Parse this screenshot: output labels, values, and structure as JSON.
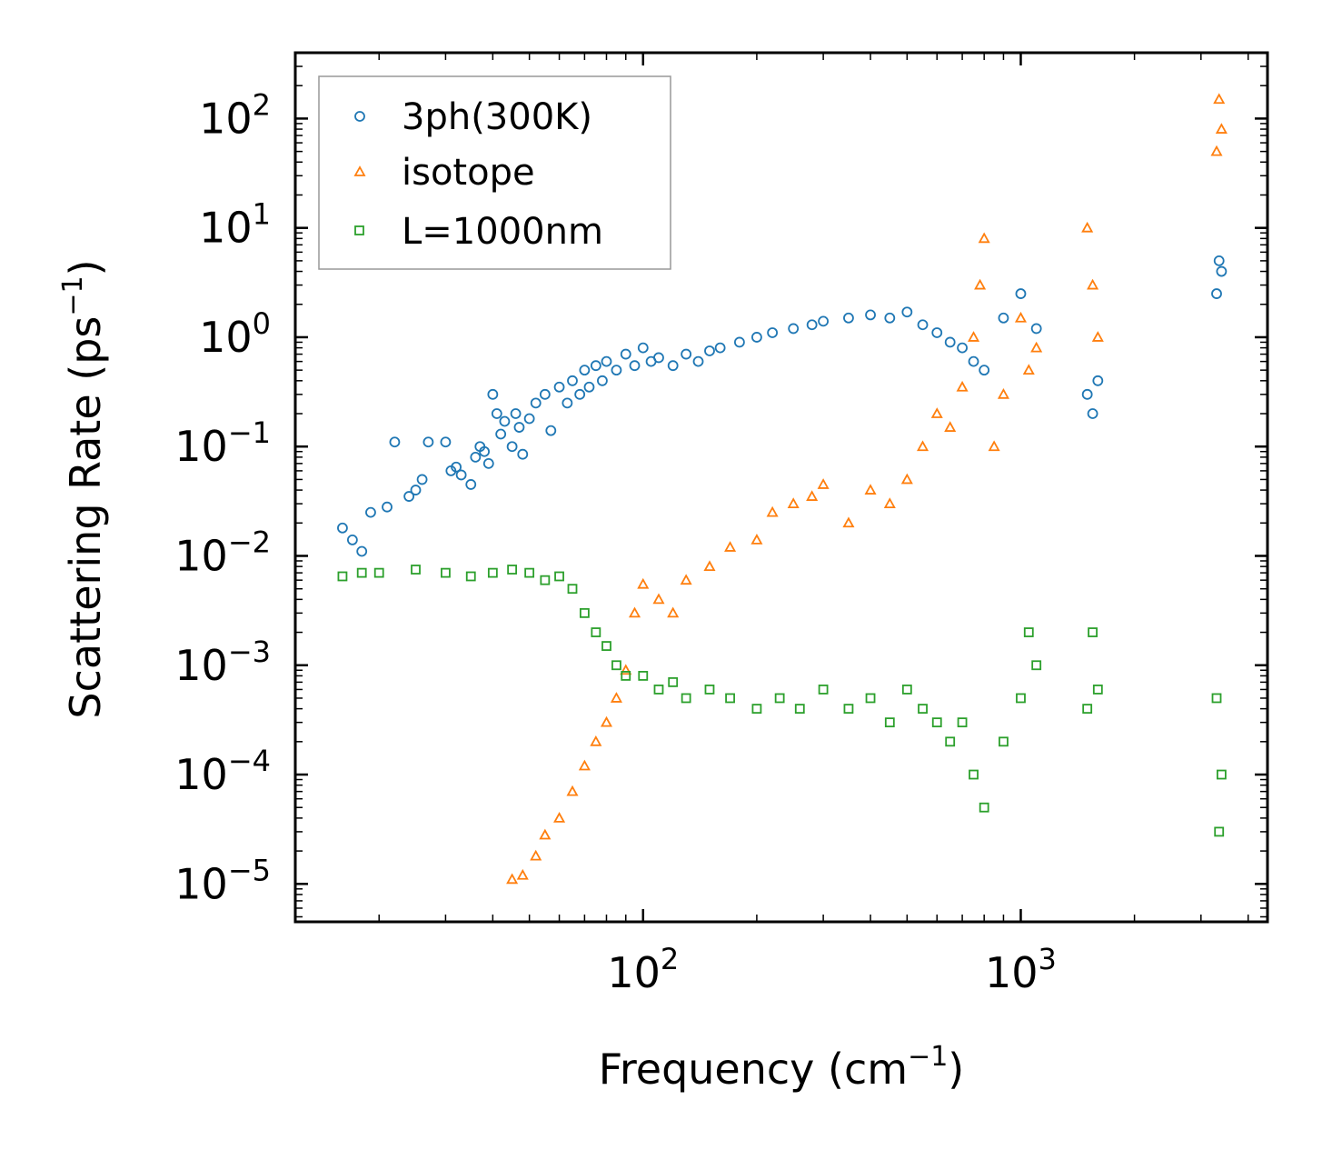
{
  "chart_data": {
    "type": "scatter",
    "xscale": "log",
    "yscale": "log",
    "xlim": [
      12,
      4500
    ],
    "ylim": [
      4.5e-06,
      400
    ],
    "xlabel": "Frequency (cm",
    "xlabel_sup": "−1",
    "xlabel_end": ")",
    "ylabel": "Scattering Rate (ps",
    "ylabel_sup": "−1",
    "ylabel_end": ")",
    "x_ticks": [
      {
        "value": 100,
        "base": "10",
        "exp": "2"
      },
      {
        "value": 1000,
        "base": "10",
        "exp": "3"
      }
    ],
    "y_ticks": [
      {
        "value": 100,
        "base": "10",
        "exp": "2"
      },
      {
        "value": 10,
        "base": "10",
        "exp": "1"
      },
      {
        "value": 1,
        "base": "10",
        "exp": "0"
      },
      {
        "value": 0.1,
        "base": "10",
        "exp": "−1"
      },
      {
        "value": 0.01,
        "base": "10",
        "exp": "−2"
      },
      {
        "value": 0.001,
        "base": "10",
        "exp": "−3"
      },
      {
        "value": 0.0001,
        "base": "10",
        "exp": "−4"
      },
      {
        "value": 1e-05,
        "base": "10",
        "exp": "−5"
      }
    ],
    "legend": {
      "position": "upper-left",
      "frame": true
    },
    "series": [
      {
        "name": "3ph(300K)",
        "marker": "circle",
        "color": "#1f77b4",
        "points": [
          [
            16,
            0.018
          ],
          [
            17,
            0.014
          ],
          [
            18,
            0.011
          ],
          [
            19,
            0.025
          ],
          [
            21,
            0.028
          ],
          [
            22,
            0.11
          ],
          [
            24,
            0.035
          ],
          [
            25,
            0.04
          ],
          [
            26,
            0.05
          ],
          [
            27,
            0.11
          ],
          [
            30,
            0.11
          ],
          [
            31,
            0.06
          ],
          [
            32,
            0.065
          ],
          [
            33,
            0.055
          ],
          [
            35,
            0.045
          ],
          [
            36,
            0.08
          ],
          [
            37,
            0.1
          ],
          [
            38,
            0.09
          ],
          [
            39,
            0.07
          ],
          [
            40,
            0.3
          ],
          [
            41,
            0.2
          ],
          [
            42,
            0.13
          ],
          [
            43,
            0.17
          ],
          [
            45,
            0.1
          ],
          [
            46,
            0.2
          ],
          [
            47,
            0.15
          ],
          [
            48,
            0.085
          ],
          [
            50,
            0.18
          ],
          [
            52,
            0.25
          ],
          [
            55,
            0.3
          ],
          [
            57,
            0.14
          ],
          [
            60,
            0.35
          ],
          [
            63,
            0.25
          ],
          [
            65,
            0.4
          ],
          [
            68,
            0.3
          ],
          [
            70,
            0.5
          ],
          [
            72,
            0.35
          ],
          [
            75,
            0.55
          ],
          [
            78,
            0.4
          ],
          [
            80,
            0.6
          ],
          [
            85,
            0.5
          ],
          [
            90,
            0.7
          ],
          [
            95,
            0.55
          ],
          [
            100,
            0.8
          ],
          [
            105,
            0.6
          ],
          [
            110,
            0.65
          ],
          [
            120,
            0.55
          ],
          [
            130,
            0.7
          ],
          [
            140,
            0.6
          ],
          [
            150,
            0.75
          ],
          [
            160,
            0.8
          ],
          [
            180,
            0.9
          ],
          [
            200,
            1.0
          ],
          [
            220,
            1.1
          ],
          [
            250,
            1.2
          ],
          [
            280,
            1.3
          ],
          [
            300,
            1.4
          ],
          [
            350,
            1.5
          ],
          [
            400,
            1.6
          ],
          [
            450,
            1.5
          ],
          [
            500,
            1.7
          ],
          [
            550,
            1.3
          ],
          [
            600,
            1.1
          ],
          [
            650,
            0.9
          ],
          [
            700,
            0.8
          ],
          [
            750,
            0.6
          ],
          [
            800,
            0.5
          ],
          [
            900,
            1.5
          ],
          [
            1000,
            2.5
          ],
          [
            1100,
            1.2
          ],
          [
            1500,
            0.3
          ],
          [
            1550,
            0.2
          ],
          [
            1600,
            0.4
          ],
          [
            3300,
            2.5
          ],
          [
            3350,
            5.0
          ],
          [
            3400,
            4.0
          ]
        ]
      },
      {
        "name": "isotope",
        "marker": "triangle",
        "color": "#ff7f0e",
        "points": [
          [
            45,
            1.1e-05
          ],
          [
            48,
            1.2e-05
          ],
          [
            52,
            1.8e-05
          ],
          [
            55,
            2.8e-05
          ],
          [
            60,
            4e-05
          ],
          [
            65,
            7e-05
          ],
          [
            70,
            0.00012
          ],
          [
            75,
            0.0002
          ],
          [
            80,
            0.0003
          ],
          [
            85,
            0.0005
          ],
          [
            90,
            0.0009
          ],
          [
            95,
            0.003
          ],
          [
            100,
            0.0055
          ],
          [
            110,
            0.004
          ],
          [
            120,
            0.003
          ],
          [
            130,
            0.006
          ],
          [
            150,
            0.008
          ],
          [
            170,
            0.012
          ],
          [
            200,
            0.014
          ],
          [
            220,
            0.025
          ],
          [
            250,
            0.03
          ],
          [
            280,
            0.035
          ],
          [
            300,
            0.045
          ],
          [
            350,
            0.02
          ],
          [
            400,
            0.04
          ],
          [
            450,
            0.03
          ],
          [
            500,
            0.05
          ],
          [
            550,
            0.1
          ],
          [
            600,
            0.2
          ],
          [
            650,
            0.15
          ],
          [
            700,
            0.35
          ],
          [
            750,
            1.0
          ],
          [
            780,
            3.0
          ],
          [
            800,
            8.0
          ],
          [
            850,
            0.1
          ],
          [
            900,
            0.3
          ],
          [
            1000,
            1.5
          ],
          [
            1050,
            0.5
          ],
          [
            1100,
            0.8
          ],
          [
            1500,
            10.0
          ],
          [
            1550,
            3.0
          ],
          [
            1600,
            1.0
          ],
          [
            3300,
            50.0
          ],
          [
            3350,
            150.0
          ],
          [
            3400,
            80.0
          ]
        ]
      },
      {
        "name": "L=1000nm",
        "marker": "square",
        "color": "#2ca02c",
        "points": [
          [
            16,
            0.0065
          ],
          [
            18,
            0.007
          ],
          [
            20,
            0.007
          ],
          [
            25,
            0.0075
          ],
          [
            30,
            0.007
          ],
          [
            35,
            0.0065
          ],
          [
            40,
            0.007
          ],
          [
            45,
            0.0075
          ],
          [
            50,
            0.007
          ],
          [
            55,
            0.006
          ],
          [
            60,
            0.0065
          ],
          [
            65,
            0.005
          ],
          [
            70,
            0.003
          ],
          [
            75,
            0.002
          ],
          [
            80,
            0.0015
          ],
          [
            85,
            0.001
          ],
          [
            90,
            0.0008
          ],
          [
            100,
            0.0008
          ],
          [
            110,
            0.0006
          ],
          [
            120,
            0.0007
          ],
          [
            130,
            0.0005
          ],
          [
            150,
            0.0006
          ],
          [
            170,
            0.0005
          ],
          [
            200,
            0.0004
          ],
          [
            230,
            0.0005
          ],
          [
            260,
            0.0004
          ],
          [
            300,
            0.0006
          ],
          [
            350,
            0.0004
          ],
          [
            400,
            0.0005
          ],
          [
            450,
            0.0003
          ],
          [
            500,
            0.0006
          ],
          [
            550,
            0.0004
          ],
          [
            600,
            0.0003
          ],
          [
            650,
            0.0002
          ],
          [
            700,
            0.0003
          ],
          [
            750,
            0.0001
          ],
          [
            800,
            5e-05
          ],
          [
            900,
            0.0002
          ],
          [
            1000,
            0.0005
          ],
          [
            1050,
            0.002
          ],
          [
            1100,
            0.001
          ],
          [
            1500,
            0.0004
          ],
          [
            1550,
            0.002
          ],
          [
            1600,
            0.0006
          ],
          [
            3300,
            0.0005
          ],
          [
            3350,
            3e-05
          ],
          [
            3400,
            0.0001
          ]
        ]
      }
    ]
  }
}
